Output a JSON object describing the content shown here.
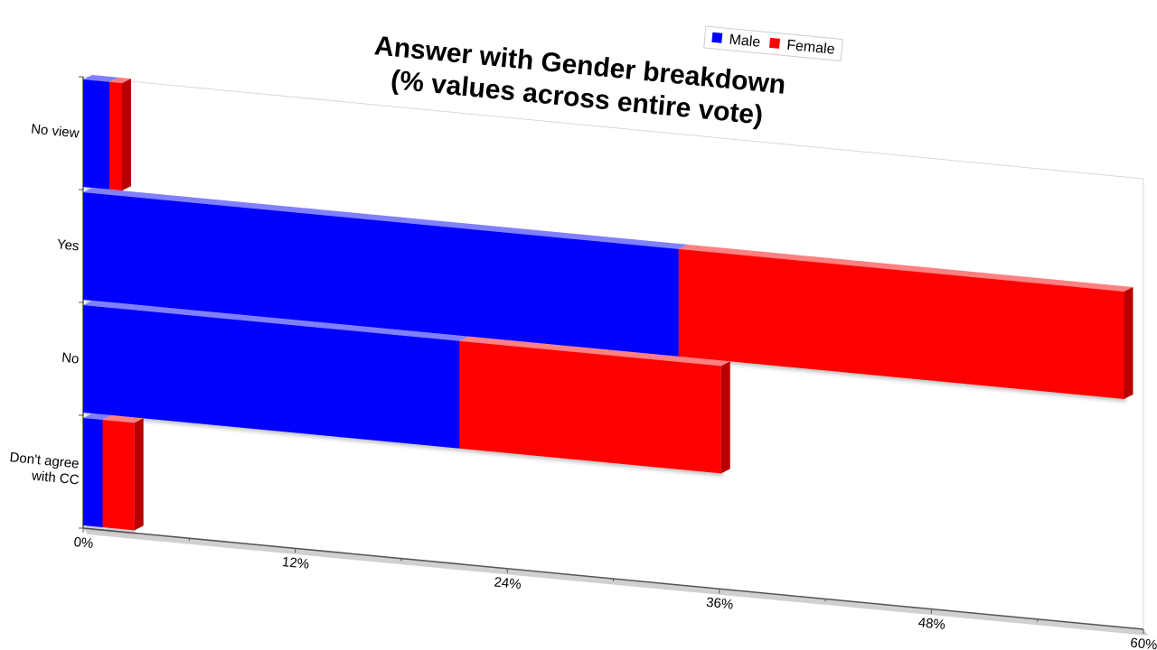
{
  "chart_data": {
    "type": "bar",
    "orientation": "horizontal",
    "stacked": true,
    "title_lines": [
      "Answer with Gender breakdown",
      "(% values across entire vote)"
    ],
    "categories": [
      "No view",
      "Yes",
      "No",
      "Don't agree with CC"
    ],
    "category_label_lines": [
      [
        "No view"
      ],
      [
        "Yes"
      ],
      [
        "No"
      ],
      [
        "Don't agree",
        "with CC"
      ]
    ],
    "series": [
      {
        "name": "Male",
        "color": "#0000ff",
        "values": [
          1.5,
          33.7,
          21.3,
          1.1
        ]
      },
      {
        "name": "Female",
        "color": "#ff0000",
        "values": [
          0.7,
          25.2,
          14.8,
          1.8
        ]
      }
    ],
    "xlim": [
      0,
      60
    ],
    "x_ticks": [
      0,
      12,
      24,
      36,
      48,
      60
    ],
    "x_tick_labels": [
      "0%",
      "12%",
      "24%",
      "36%",
      "48%",
      "60%"
    ],
    "grid": false,
    "legend_position": "top-right"
  }
}
